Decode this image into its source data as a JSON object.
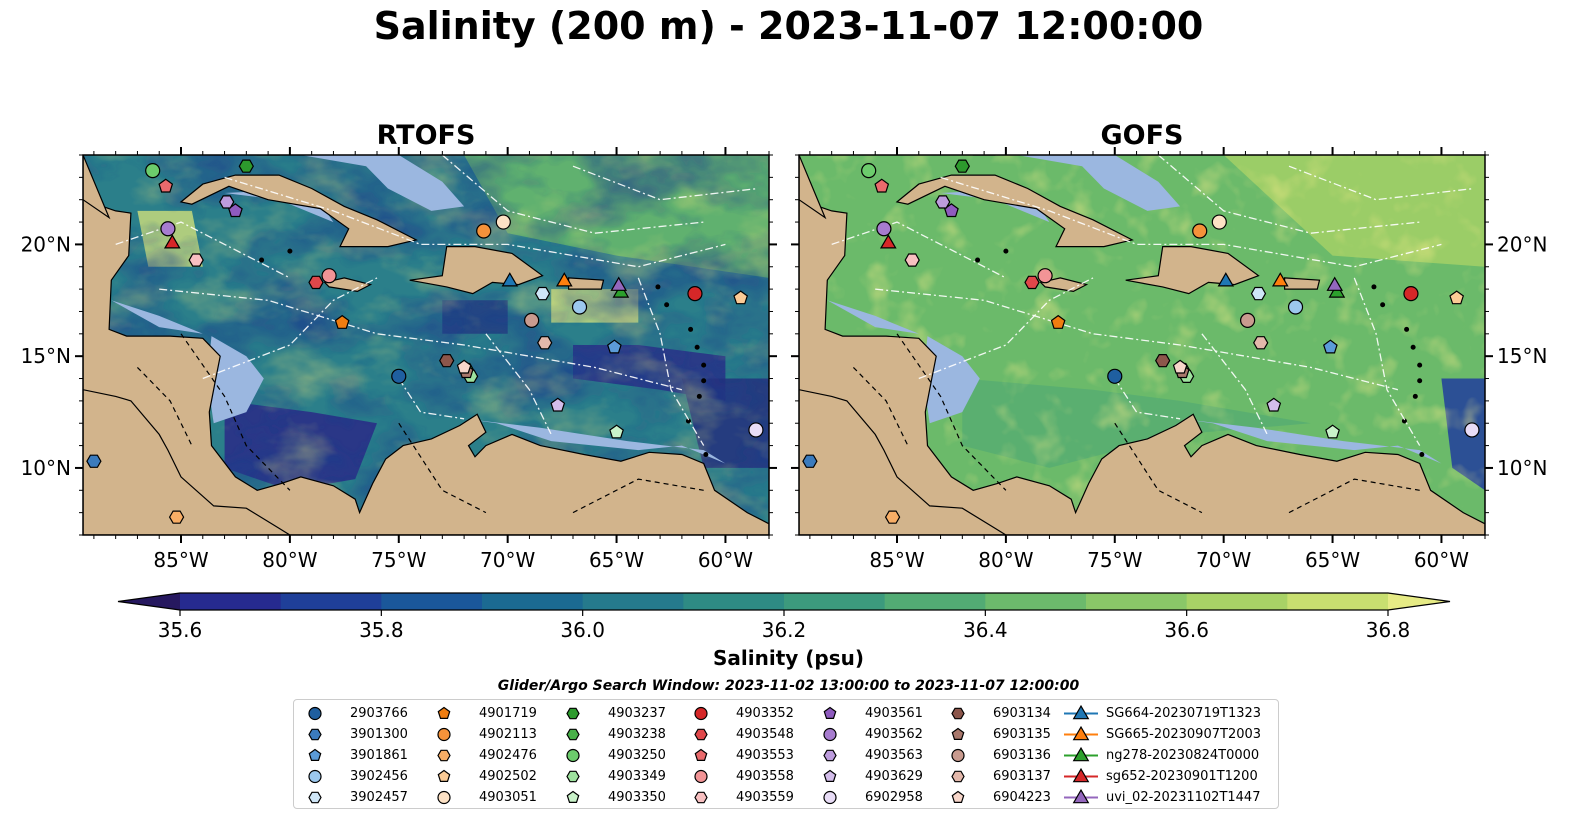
{
  "title": "Salinity (200 m) - 2023-11-07 12:00:00",
  "panels": [
    {
      "id": "rtofs",
      "title": "RTOFS"
    },
    {
      "id": "gofs",
      "title": "GOFS"
    }
  ],
  "map": {
    "lon_range": [
      -89.5,
      -58.0
    ],
    "lat_range": [
      7.0,
      24.0
    ],
    "lon_ticks": [
      {
        "value": -85,
        "label": "85°W"
      },
      {
        "value": -80,
        "label": "80°W"
      },
      {
        "value": -75,
        "label": "75°W"
      },
      {
        "value": -70,
        "label": "70°W"
      },
      {
        "value": -65,
        "label": "65°W"
      },
      {
        "value": -60,
        "label": "60°W"
      }
    ],
    "lat_ticks": [
      {
        "value": 10,
        "label": "10°N"
      },
      {
        "value": 15,
        "label": "15°N"
      },
      {
        "value": 20,
        "label": "20°N"
      }
    ],
    "colors": {
      "land": "#d2b48c",
      "shelf": "#9bb7e0",
      "ocean_low": "#2a1e6e",
      "ocean_high": "#ffec8b",
      "grid": "#ffffff"
    }
  },
  "colorbar": {
    "label": "Salinity (psu)",
    "min": 35.5,
    "max": 36.9,
    "step": 0.1,
    "ticks": [
      "35.6",
      "35.8",
      "36.0",
      "36.2",
      "36.4",
      "36.6",
      "36.8"
    ],
    "extend": "both",
    "colors": [
      "#26185f",
      "#262a8f",
      "#1f3f99",
      "#1a579a",
      "#1b6a92",
      "#257a8c",
      "#2e8b84",
      "#3c9a7d",
      "#52ab74",
      "#6cba6c",
      "#8ac768",
      "#a8d266",
      "#c8df70",
      "#e6eb85"
    ]
  },
  "search_window": "Glider/Argo Search Window: 2023-11-02 13:00:00 to 2023-11-07 12:00:00",
  "legend": [
    {
      "label": "2903766",
      "marker": "circle",
      "color": "#1f5fa0"
    },
    {
      "label": "3901300",
      "marker": "hexagon",
      "color": "#3b7bbd"
    },
    {
      "label": "3901861",
      "marker": "pentagon",
      "color": "#5b9bd8"
    },
    {
      "label": "3902456",
      "marker": "circle",
      "color": "#9cc8ee"
    },
    {
      "label": "3902457",
      "marker": "hexagon",
      "color": "#cfe6f7"
    },
    {
      "label": "4901719",
      "marker": "pentagon",
      "color": "#f07d10"
    },
    {
      "label": "4902113",
      "marker": "circle",
      "color": "#f5923a"
    },
    {
      "label": "4902476",
      "marker": "hexagon",
      "color": "#f8ae66"
    },
    {
      "label": "4902502",
      "marker": "pentagon",
      "color": "#fbcb96"
    },
    {
      "label": "4903051",
      "marker": "circle",
      "color": "#fde2c5"
    },
    {
      "label": "4903237",
      "marker": "hexagon",
      "color": "#2d9a2d"
    },
    {
      "label": "4903238",
      "marker": "hexagon",
      "color": "#48b048"
    },
    {
      "label": "4903250",
      "marker": "circle",
      "color": "#6ccc6c"
    },
    {
      "label": "4903349",
      "marker": "hexagon",
      "color": "#9ee29e"
    },
    {
      "label": "4903350",
      "marker": "pentagon",
      "color": "#c9f2c9"
    },
    {
      "label": "4903352",
      "marker": "circle",
      "color": "#d62728"
    },
    {
      "label": "4903548",
      "marker": "hexagon",
      "color": "#e0474a"
    },
    {
      "label": "4903553",
      "marker": "pentagon",
      "color": "#ea6a6c"
    },
    {
      "label": "4903558",
      "marker": "circle",
      "color": "#f29496"
    },
    {
      "label": "4903559",
      "marker": "hexagon",
      "color": "#f8c0c1"
    },
    {
      "label": "4903561",
      "marker": "pentagon",
      "color": "#8f5bbf"
    },
    {
      "label": "4903562",
      "marker": "circle",
      "color": "#a77ccf"
    },
    {
      "label": "4903563",
      "marker": "hexagon",
      "color": "#bd9cdd"
    },
    {
      "label": "4903629",
      "marker": "pentagon",
      "color": "#d3bdea"
    },
    {
      "label": "6902958",
      "marker": "circle",
      "color": "#e8dcf6"
    },
    {
      "label": "6903134",
      "marker": "hexagon",
      "color": "#8c564b"
    },
    {
      "label": "6903135",
      "marker": "pentagon",
      "color": "#a9786c"
    },
    {
      "label": "6903136",
      "marker": "circle",
      "color": "#c99b8f"
    },
    {
      "label": "6903137",
      "marker": "hexagon",
      "color": "#e3b8ab"
    },
    {
      "label": "6904223",
      "marker": "pentagon",
      "color": "#f7d6ca"
    },
    {
      "label": "SG664-20230719T1323",
      "marker": "triangle",
      "color": "#1f77b4",
      "line": true
    },
    {
      "label": "SG665-20230907T2003",
      "marker": "triangle",
      "color": "#ff7f0e",
      "line": true
    },
    {
      "label": "ng278-20230824T0000",
      "marker": "triangle",
      "color": "#2ca02c",
      "line": true
    },
    {
      "label": "sg652-20230901T1200",
      "marker": "triangle",
      "color": "#d62728",
      "line": true
    },
    {
      "label": "uvi_02-20231102T1447",
      "marker": "triangle",
      "color": "#9467bd",
      "line": true
    }
  ],
  "observations": [
    {
      "id": "2903766",
      "lon": -75.0,
      "lat": 14.1
    },
    {
      "id": "3901300",
      "lon": -89.0,
      "lat": 10.3
    },
    {
      "id": "3901861",
      "lon": -65.1,
      "lat": 15.4
    },
    {
      "id": "3902456",
      "lon": -66.7,
      "lat": 17.2
    },
    {
      "id": "3902457",
      "lon": -68.4,
      "lat": 17.8
    },
    {
      "id": "4901719",
      "lon": -77.6,
      "lat": 16.5
    },
    {
      "id": "4902113",
      "lon": -71.1,
      "lat": 20.6
    },
    {
      "id": "4902476",
      "lon": -85.2,
      "lat": 7.8
    },
    {
      "id": "4902502",
      "lon": -59.3,
      "lat": 17.6
    },
    {
      "id": "4903051",
      "lon": -70.2,
      "lat": 21.0
    },
    {
      "id": "4903237",
      "lon": -82.0,
      "lat": 23.5
    },
    {
      "id": "4903238",
      "lon": -71.9,
      "lat": 14.4
    },
    {
      "id": "4903250",
      "lon": -86.3,
      "lat": 23.3
    },
    {
      "id": "4903349",
      "lon": -71.7,
      "lat": 14.1
    },
    {
      "id": "4903350",
      "lon": -65.0,
      "lat": 11.6
    },
    {
      "id": "4903352",
      "lon": -61.4,
      "lat": 17.8
    },
    {
      "id": "4903548",
      "lon": -78.8,
      "lat": 18.3
    },
    {
      "id": "4903553",
      "lon": -85.7,
      "lat": 22.6
    },
    {
      "id": "4903558",
      "lon": -78.2,
      "lat": 18.6
    },
    {
      "id": "4903559",
      "lon": -84.3,
      "lat": 19.3
    },
    {
      "id": "4903561",
      "lon": -82.5,
      "lat": 21.5
    },
    {
      "id": "4903562",
      "lon": -85.6,
      "lat": 20.7
    },
    {
      "id": "4903563",
      "lon": -82.9,
      "lat": 21.9
    },
    {
      "id": "4903629",
      "lon": -67.7,
      "lat": 12.8
    },
    {
      "id": "6902958",
      "lon": -58.6,
      "lat": 11.7
    },
    {
      "id": "6903134",
      "lon": -72.8,
      "lat": 14.8
    },
    {
      "id": "6903135",
      "lon": -71.9,
      "lat": 14.3
    },
    {
      "id": "6903136",
      "lon": -68.9,
      "lat": 16.6
    },
    {
      "id": "6903137",
      "lon": -68.3,
      "lat": 15.6
    },
    {
      "id": "6904223",
      "lon": -72.0,
      "lat": 14.5
    },
    {
      "id": "SG664-20230719T1323",
      "lon": -69.9,
      "lat": 18.4
    },
    {
      "id": "SG665-20230907T2003",
      "lon": -67.4,
      "lat": 18.4
    },
    {
      "id": "ng278-20230824T0000",
      "lon": -64.8,
      "lat": 17.9
    },
    {
      "id": "sg652-20230901T1200",
      "lon": -85.4,
      "lat": 20.1
    },
    {
      "id": "uvi_02-20231102T1447",
      "lon": -64.9,
      "lat": 18.2
    }
  ]
}
